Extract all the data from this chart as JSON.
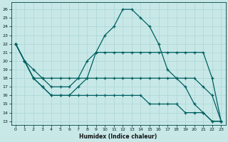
{
  "xlabel": "Humidex (Indice chaleur)",
  "background_color": "#c8e8e8",
  "grid_color": "#b0d8d8",
  "line_color": "#006060",
  "xlim": [
    -0.5,
    23.5
  ],
  "ylim_min": 12.6,
  "ylim_max": 26.8,
  "yticks": [
    13,
    14,
    15,
    16,
    17,
    18,
    19,
    20,
    21,
    22,
    23,
    24,
    25,
    26
  ],
  "xticks": [
    0,
    1,
    2,
    3,
    4,
    5,
    6,
    7,
    8,
    9,
    10,
    11,
    12,
    13,
    14,
    15,
    16,
    17,
    18,
    19,
    20,
    21,
    22,
    23
  ],
  "line_peak": [
    22,
    20,
    18,
    17,
    16,
    16,
    16,
    17,
    18,
    21,
    23,
    24,
    26,
    26,
    25,
    24,
    22,
    19,
    18,
    17,
    15,
    14,
    13,
    13
  ],
  "line_med": [
    22,
    20,
    19,
    18,
    18,
    18,
    18,
    18,
    20,
    21,
    21,
    21,
    21,
    21,
    21,
    21,
    21,
    21,
    21,
    21,
    21,
    21,
    18,
    13
  ],
  "line_flat": [
    22,
    20,
    18,
    18,
    17,
    17,
    17,
    18,
    18,
    18,
    18,
    18,
    18,
    18,
    18,
    18,
    18,
    18,
    18,
    18,
    18,
    17,
    16,
    13
  ],
  "line_low": [
    22,
    20,
    18,
    17,
    16,
    16,
    16,
    16,
    16,
    16,
    16,
    16,
    16,
    16,
    16,
    15,
    15,
    15,
    15,
    14,
    14,
    14,
    13,
    13
  ]
}
